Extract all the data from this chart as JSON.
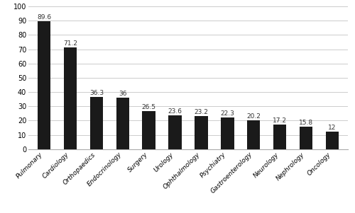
{
  "categories": [
    "Pulmonary",
    "Cardiology",
    "Orthopaedics",
    "Endocrinology",
    "Surgery",
    "Urology",
    "Ophthalmology",
    "Psychiatry",
    "Gastroenterology",
    "Neurology",
    "Nephrology",
    "Oncology"
  ],
  "values": [
    89.6,
    71.2,
    36.3,
    36,
    26.5,
    23.6,
    23.2,
    22.3,
    20.2,
    17.2,
    15.8,
    12
  ],
  "bar_color": "#1a1a1a",
  "ylim": [
    0,
    100
  ],
  "yticks": [
    0,
    10,
    20,
    30,
    40,
    50,
    60,
    70,
    80,
    90,
    100
  ],
  "label_fontsize": 6.5,
  "value_fontsize": 6.5,
  "tick_fontsize": 7.0,
  "background_color": "#ffffff",
  "grid_color": "#cccccc",
  "bar_width": 0.5
}
